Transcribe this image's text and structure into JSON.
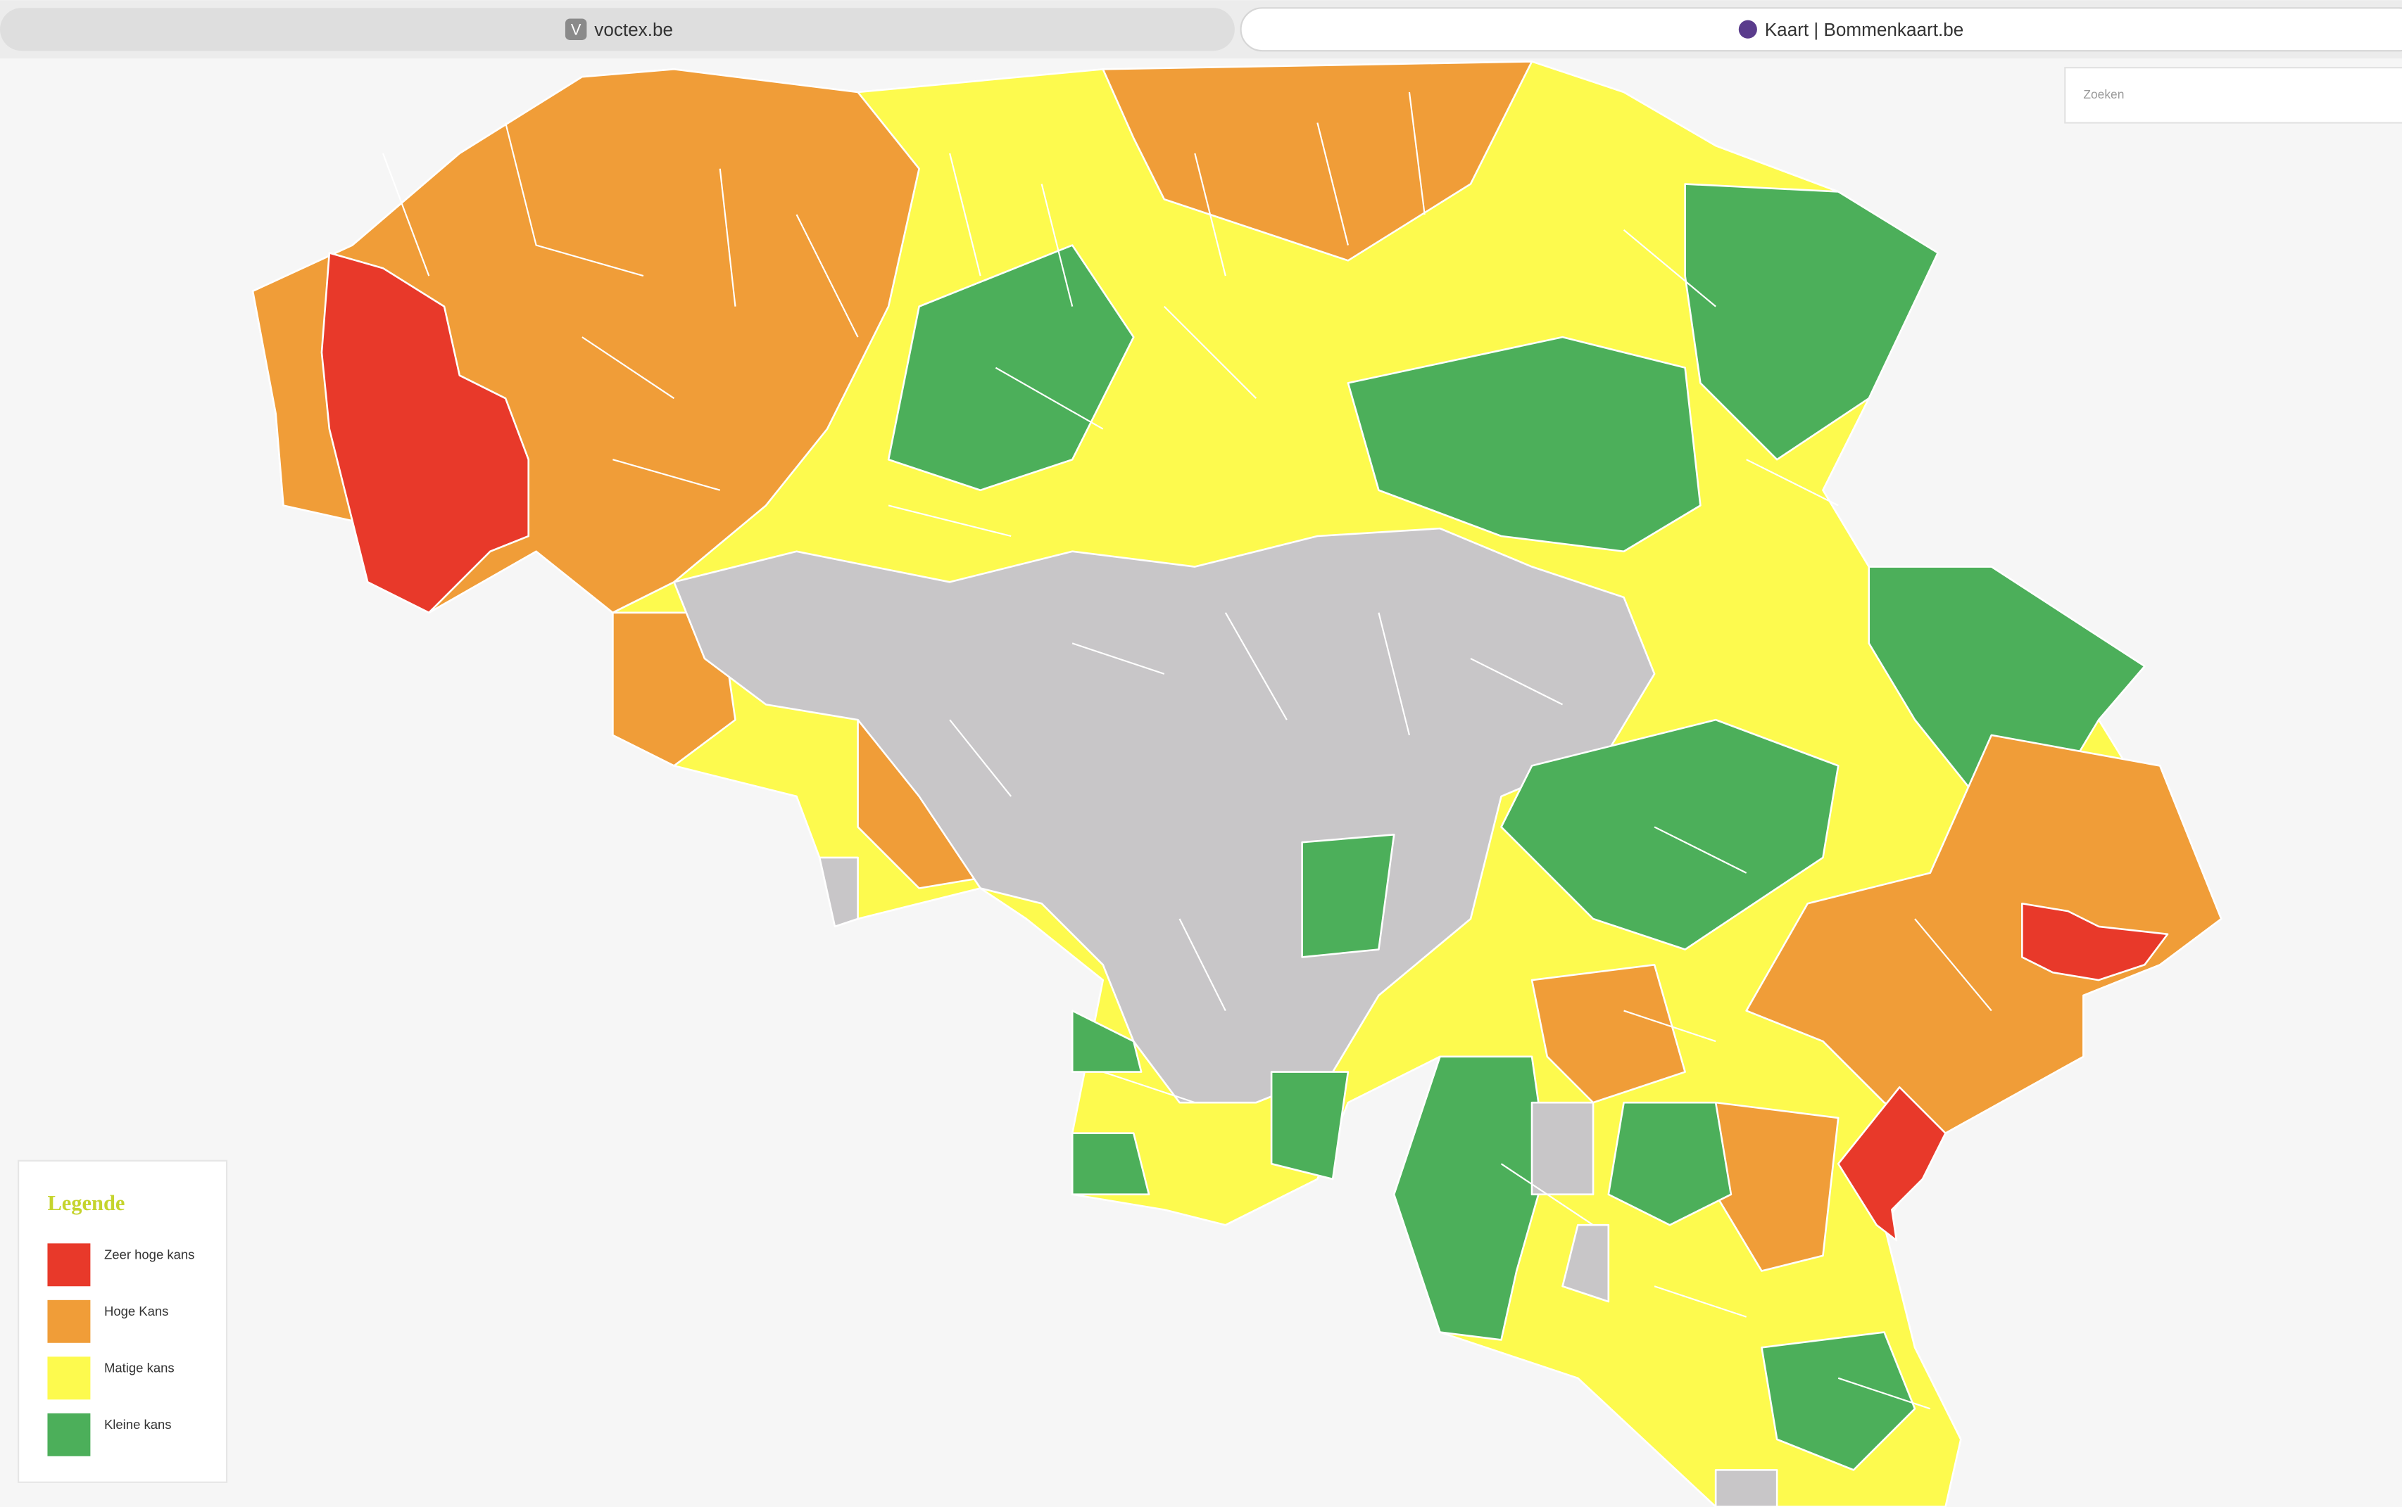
{
  "tabs": [
    {
      "icon": "V",
      "label": "voctex.be"
    },
    {
      "label": "Kaart | Bommenkaart.be"
    }
  ],
  "search": {
    "placeholder": "Zoeken"
  },
  "legend": {
    "title": "Legende",
    "items": [
      {
        "label": "Zeer hoge kans",
        "color": "#e8392a"
      },
      {
        "label": "Hoge Kans",
        "color": "#f09d38"
      },
      {
        "label": "Matige kans",
        "color": "#fdfa4e"
      },
      {
        "label": "Kleine kans",
        "color": "#4caf5a"
      }
    ]
  }
}
